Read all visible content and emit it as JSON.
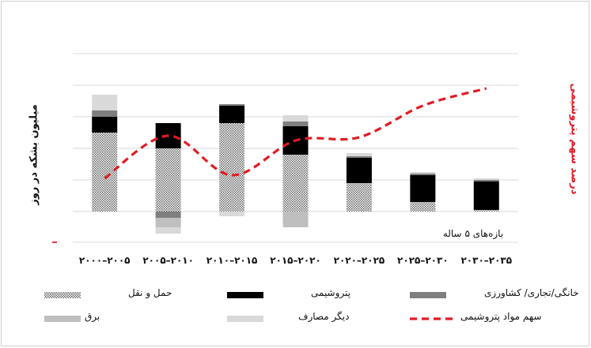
{
  "chart_data": {
    "type": "bar",
    "stacked": true,
    "title": "",
    "ylabel_left": "میلیون بشکه در روز",
    "ylabel_right": "درصد سهم پتروشیمی",
    "xaxis_note": "بازه‌های ۵ ساله",
    "categories": [
      "۲۰۰۰–۲۰۰۵",
      "۲۰۰۵–۲۰۱۰",
      "۲۰۱۰–۲۰۱۵",
      "۲۰۱۵–۲۰۲۰",
      "۲۰۲۰–۲۰۲۵",
      "۲۰۲۵–۲۰۳۰",
      "۲۰۳۰–۲۰۳۵"
    ],
    "ylim": [
      -1.5,
      5
    ],
    "grid": true,
    "series": [
      {
        "name": "حمل و نقل",
        "values": [
          2.5,
          2.0,
          2.8,
          1.8,
          0.9,
          0.3,
          0.05
        ],
        "pattern": "dots"
      },
      {
        "name": "پتروشیمی",
        "values": [
          0.5,
          0.8,
          0.55,
          0.9,
          0.8,
          0.85,
          0.9
        ],
        "color": "#000000"
      },
      {
        "name": "خانگی/تجاری/ کشاورزی",
        "values": [
          0.2,
          -0.2,
          0.05,
          0.15,
          0.05,
          0.05,
          0.05
        ],
        "color": "#7f7f7f"
      },
      {
        "name": "برق",
        "values": [
          0,
          -0.3,
          0,
          -0.5,
          0,
          0,
          0
        ],
        "color": "#bfbfbf"
      },
      {
        "name": "دیگر مصارف",
        "values": [
          0.5,
          -0.2,
          -0.15,
          0.2,
          0.1,
          0.05,
          0.05
        ],
        "color": "#d9d9d9"
      }
    ],
    "line_series": {
      "name": "سهم مواد پتروشیمی",
      "color": "#e01b24",
      "axis": "right",
      "x": [
        "۲۰۰۰–۲۰۰۵",
        "۲۰۰۵–۲۰۱۰",
        "۲۰۱۰–۲۰۱۵",
        "۲۰۱۵–۲۰۲۰",
        "۲۰۲۰–۲۰۲۵",
        "۲۰۲۵–۲۰۳۰",
        "۲۰۳۰–۲۰۳۵"
      ],
      "values": [
        0.9,
        2.25,
        1.0,
        2.1,
        2.2,
        3.2,
        3.75
      ]
    },
    "legend_position": "bottom"
  }
}
